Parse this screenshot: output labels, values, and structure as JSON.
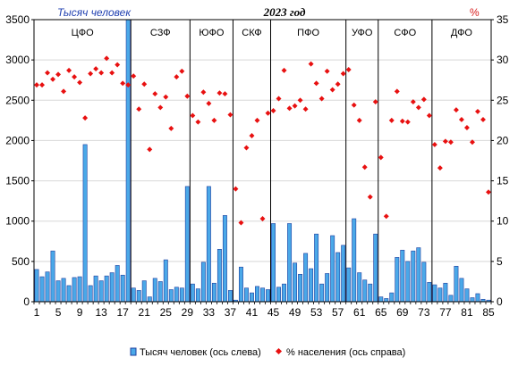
{
  "chart_data": {
    "type": "bar+scatter",
    "title": "2023 год",
    "left_unit": "Тысяч человек",
    "right_unit": "%",
    "y_left": {
      "min": 0,
      "max": 3500,
      "ticks": [
        0,
        500,
        1000,
        1500,
        2000,
        2500,
        3000,
        3500
      ]
    },
    "y_right": {
      "min": 0,
      "max": 35,
      "ticks": [
        0,
        5,
        10,
        15,
        20,
        25,
        30,
        35
      ]
    },
    "x_ticks": [
      1,
      5,
      9,
      13,
      17,
      21,
      25,
      29,
      33,
      37,
      41,
      45,
      49,
      53,
      57,
      61,
      65,
      69,
      73,
      77,
      81,
      85
    ],
    "region_groups": [
      {
        "label": "ЦФО",
        "start": 1,
        "end": 18
      },
      {
        "label": "СЗФ",
        "start": 19,
        "end": 29
      },
      {
        "label": "ЮФО",
        "start": 30,
        "end": 37
      },
      {
        "label": "СКФ",
        "start": 38,
        "end": 44
      },
      {
        "label": "ПФО",
        "start": 45,
        "end": 58
      },
      {
        "label": "УФО",
        "start": 59,
        "end": 64
      },
      {
        "label": "СФО",
        "start": 65,
        "end": 74
      },
      {
        "label": "ДФО",
        "start": 75,
        "end": 85
      }
    ],
    "series": [
      {
        "name": "Тысяч человек (ось слева)",
        "kind": "bar",
        "axis": "left",
        "color": "#4aa8e8",
        "values": [
          400,
          310,
          370,
          630,
          260,
          290,
          200,
          300,
          310,
          1950,
          200,
          320,
          260,
          320,
          360,
          450,
          330,
          3500,
          170,
          140,
          260,
          60,
          290,
          250,
          520,
          150,
          180,
          170,
          1430,
          220,
          160,
          490,
          1430,
          230,
          650,
          1070,
          140,
          20,
          430,
          170,
          110,
          190,
          170,
          150,
          970,
          180,
          220,
          970,
          480,
          340,
          600,
          410,
          840,
          220,
          350,
          820,
          610,
          700,
          420,
          1030,
          360,
          270,
          220,
          840,
          60,
          40,
          110,
          550,
          640,
          500,
          630,
          670,
          490,
          240,
          210,
          170,
          230,
          80,
          440,
          290,
          160,
          50,
          100,
          30,
          20
        ]
      },
      {
        "name": "% населения (ось справа)",
        "kind": "scatter",
        "axis": "right",
        "color": "#e81010",
        "values": [
          26.9,
          26.9,
          28.4,
          27.6,
          28.2,
          26.1,
          28.7,
          27.9,
          27.2,
          22.8,
          28.3,
          28.9,
          28.4,
          30.2,
          28.4,
          29.4,
          27.1,
          26.9,
          28.0,
          23.9,
          27.0,
          18.9,
          25.8,
          24.1,
          25.4,
          21.5,
          27.9,
          28.6,
          25.5,
          23.1,
          22.3,
          26.0,
          24.6,
          22.5,
          25.9,
          25.8,
          23.2,
          14.0,
          9.8,
          19.1,
          20.6,
          22.5,
          10.3,
          23.4,
          23.7,
          25.2,
          28.7,
          24.0,
          24.3,
          25.0,
          23.9,
          29.5,
          27.1,
          25.2,
          28.6,
          26.3,
          27.0,
          28.3,
          28.8,
          24.4,
          22.5,
          16.7,
          13.0,
          24.8,
          17.9,
          10.6,
          22.5,
          26.1,
          22.4,
          22.3,
          24.8,
          24.1,
          25.1,
          23.1,
          19.5,
          16.6,
          19.9,
          19.8,
          23.8,
          22.6,
          21.6,
          19.8,
          23.6,
          22.6,
          13.6
        ]
      }
    ],
    "legend_position": "bottom"
  }
}
